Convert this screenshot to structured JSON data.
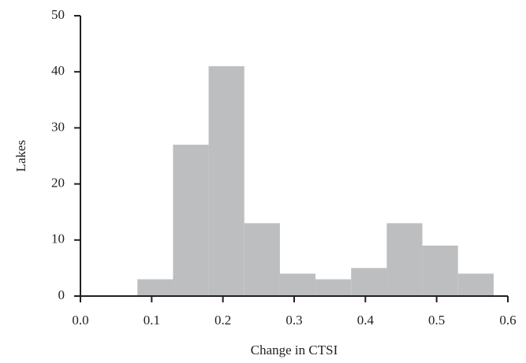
{
  "chart_data": {
    "type": "histogram",
    "xlabel": "Change in CTSI",
    "ylabel": "Lakes",
    "bins": [
      0.08,
      0.13,
      0.18,
      0.23,
      0.28,
      0.33,
      0.38,
      0.43,
      0.48,
      0.53,
      0.58
    ],
    "values": [
      3,
      27,
      41,
      13,
      4,
      3,
      5,
      13,
      9,
      4
    ],
    "color": "#bdbec0",
    "xlim": [
      0,
      0.6
    ],
    "xticks": [
      {
        "value": 0,
        "label": "0.0"
      },
      0.1,
      0.2,
      0.3,
      0.4,
      0.5,
      0.6
    ],
    "ylim": [
      0,
      50
    ],
    "yticks": [
      0,
      10,
      20,
      30,
      40,
      50
    ],
    "grid": false
  }
}
